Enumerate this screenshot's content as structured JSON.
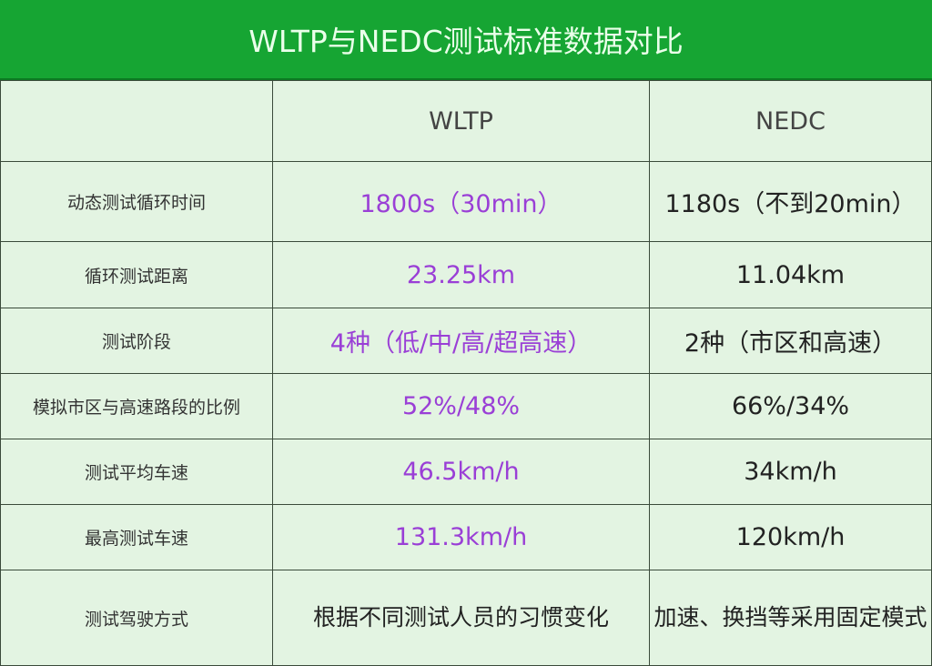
{
  "title": "WLTP与NEDC测试标准数据对比",
  "headers": [
    "",
    "WLTP",
    "NEDC"
  ],
  "rows": [
    {
      "label": "动态测试循环时间",
      "wltp": "1800s（30min）",
      "nedc": "1180s（不到20min）"
    },
    {
      "label": "循环测试距离",
      "wltp": "23.25km",
      "nedc": "11.04km"
    },
    {
      "label": "测试阶段",
      "wltp": "4种（低/中/高/超高速）",
      "nedc": "2种（市区和高速）"
    },
    {
      "label": "模拟市区与高速路段的比例",
      "wltp": "52%/48%",
      "nedc": "66%/34%"
    },
    {
      "label": "测试平均车速",
      "wltp": "46.5km/h",
      "nedc": "34km/h"
    },
    {
      "label": "最高测试车速",
      "wltp": "131.3km/h",
      "nedc": "120km/h"
    },
    {
      "label": "测试驾驶方式",
      "wltp": "根据不同测试人员的习惯变化",
      "nedc": "加速、换挡等采用固定模式"
    }
  ],
  "colors": {
    "header_bg": "#16a533",
    "table_bg": "#e3f4e2",
    "wltp_text": "#9a3fd6"
  }
}
